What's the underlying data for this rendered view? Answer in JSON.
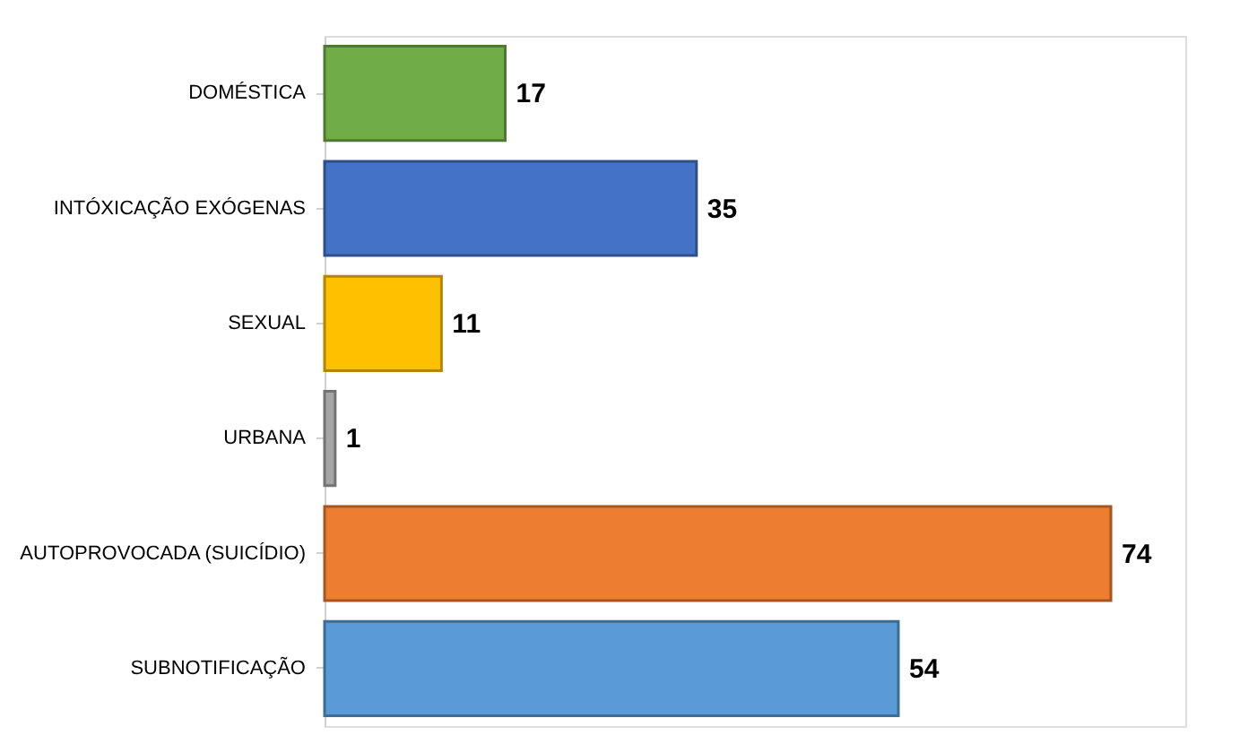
{
  "chart_data": {
    "type": "bar",
    "orientation": "horizontal",
    "categories": [
      "DOMÉSTICA",
      "INTÓXICAÇÃO EXÓGENAS",
      "SEXUAL",
      "URBANA",
      "AUTOPROVOCADA (SUICÍDIO)",
      "SUBNOTIFICAÇÃO"
    ],
    "values": [
      17,
      35,
      11,
      1,
      74,
      54
    ],
    "colors": [
      "#70ad47",
      "#4472c4",
      "#ffc000",
      "#a5a5a5",
      "#ed7d31",
      "#5b9bd5"
    ],
    "xlim": [
      0,
      81
    ],
    "tick_labels": "y",
    "data_labels": true
  }
}
